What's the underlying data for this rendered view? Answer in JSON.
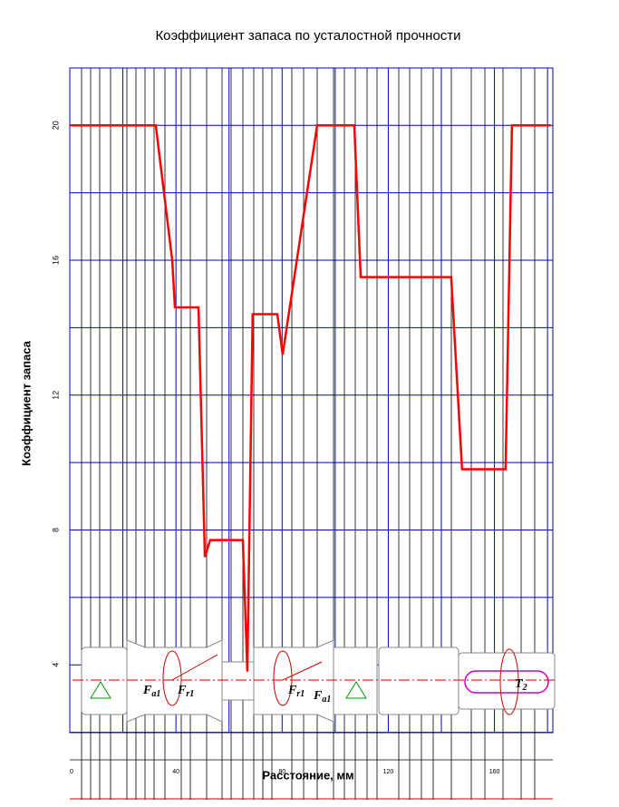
{
  "chart_data": {
    "type": "line",
    "title": "Коэффициент запаса по усталостной прочности",
    "xlabel": "Расстояние, мм",
    "ylabel": "Коэффициент запаса",
    "xlim": [
      0,
      182
    ],
    "ylim": [
      0,
      21.7
    ],
    "xticks": [
      0,
      40,
      80,
      120,
      160
    ],
    "yticks": [
      4,
      8,
      12,
      16,
      20
    ],
    "grid": true,
    "series": [
      {
        "color": "#ff0000",
        "x": [
          0,
          32.4,
          38.6,
          39.6,
          48.5,
          50.9,
          52.9,
          65.2,
          66.9,
          68.9,
          78.2,
          80.2,
          93.2,
          107.2,
          109.6,
          143.7,
          147.8,
          164.2,
          166.6,
          181.2
        ],
        "values": [
          20,
          20,
          16.0,
          14.6,
          14.6,
          7.2,
          7.7,
          7.7,
          3.8,
          14.4,
          14.4,
          13.2,
          20,
          20,
          15.5,
          15.5,
          9.8,
          9.8,
          20,
          20
        ]
      }
    ],
    "annotations": [
      {
        "text": "F",
        "sub": "a1"
      },
      {
        "text": "F",
        "sub": "r1"
      },
      {
        "text": "F",
        "sub": "r1"
      },
      {
        "text": "F",
        "sub": "a1"
      },
      {
        "text": "T",
        "sub": "2"
      }
    ]
  }
}
